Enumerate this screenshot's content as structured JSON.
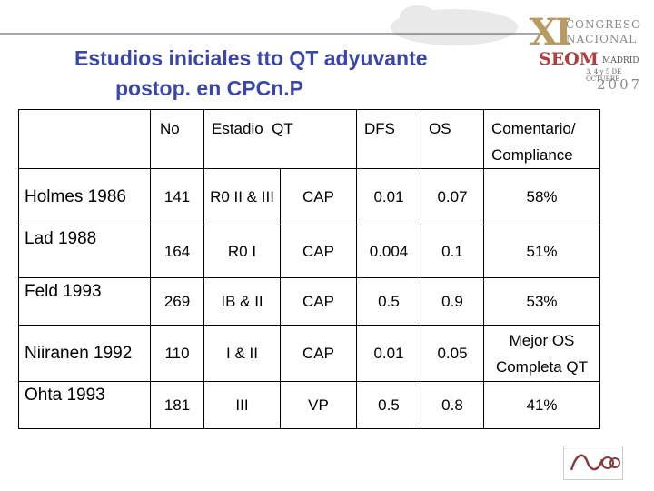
{
  "slide": {
    "title_line1": "Estudios iniciales tto QT adyuvante",
    "title_line2": "postop. en CPCn.P"
  },
  "logo": {
    "xi": "XI",
    "line1": "CONGRESO",
    "line2": "NACIONAL",
    "seom": "SEOM",
    "city": "MADRID",
    "dates": "3, 4 y 5 DE OCTUBRE",
    "year": "2007"
  },
  "table": {
    "headers": {
      "no": "No",
      "estadio": "Estadio",
      "qt": "QT",
      "dfs": "DFS",
      "os": "OS",
      "comentario": "Comentario/ Compliance"
    },
    "rows": [
      {
        "study": "Holmes 1986",
        "no": "141",
        "estadio": "R0 II & III",
        "qt": "CAP",
        "dfs": "0.01",
        "os": "0.07",
        "comentario": "58%"
      },
      {
        "study": "Lad 1988",
        "no": "164",
        "estadio": "R0 I",
        "qt": "CAP",
        "dfs": "0.004",
        "os": "0.1",
        "comentario": "51%"
      },
      {
        "study": "Feld 1993",
        "no": "269",
        "estadio": "IB & II",
        "qt": "CAP",
        "dfs": "0.5",
        "os": "0.9",
        "comentario": "53%"
      },
      {
        "study": "Niiranen 1992",
        "no": "110",
        "estadio": "I & II",
        "qt": "CAP",
        "dfs": "0.01",
        "os": "0.05",
        "comentario": "Mejor OS Completa QT"
      },
      {
        "study": "Ohta 1993",
        "no": "181",
        "estadio": "III",
        "qt": "VP",
        "dfs": "0.5",
        "os": "0.8",
        "comentario": "41%"
      }
    ]
  },
  "colors": {
    "title": "#3a46a8",
    "logo_gold": "#b89a63",
    "logo_red": "#b04040"
  }
}
